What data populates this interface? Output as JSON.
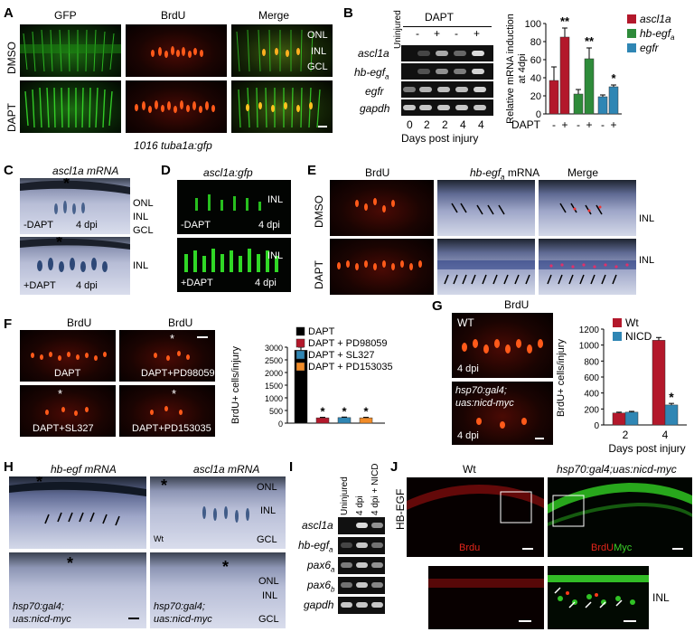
{
  "panels": {
    "A": {
      "label": "A",
      "columns": [
        "GFP",
        "BrdU",
        "Merge"
      ],
      "rows": [
        "DMSO",
        "DAPT"
      ],
      "layers": [
        "ONL",
        "INL",
        "GCL"
      ],
      "caption": "1016 tuba1a:gfp"
    },
    "B": {
      "label": "B",
      "uninjured": "Uninjured",
      "dapt": "DAPT",
      "signs": [
        "-",
        "+",
        "-",
        "+"
      ],
      "genes": [
        "ascl1a",
        "hb-egf",
        "egfr",
        "gapdh"
      ],
      "subscript_a": "a",
      "days": [
        "0",
        "2",
        "2",
        "4",
        "4"
      ],
      "xlabel": "Days post injury"
    },
    "C": {
      "label": "C",
      "title": "ascl1a mRNA",
      "layers": [
        "ONL",
        "INL",
        "GCL"
      ],
      "top": "-DAPT",
      "bottom": "+DAPT",
      "dpi": "4 dpi",
      "inl": "INL",
      "asterisk": "*"
    },
    "D": {
      "label": "D",
      "title": "ascl1a:gfp",
      "inl": "INL",
      "top": "-DAPT",
      "bottom": "+DAPT",
      "dpi": "4 dpi"
    },
    "E": {
      "label": "E",
      "columns": [
        "BrdU",
        "hb-egf",
        "mRNA",
        "Merge"
      ],
      "subscript_a": "a",
      "rows": [
        "DMSO",
        "DAPT"
      ],
      "inl": "INL"
    },
    "F": {
      "label": "F",
      "headers": [
        "BrdU",
        "BrdU"
      ],
      "captions": [
        "DAPT",
        "DAPT+PD98059",
        "DAPT+SL327",
        "DAPT+PD153035"
      ],
      "asterisk": "*"
    },
    "G": {
      "label": "G",
      "title": "BrdU",
      "wt": "WT",
      "dpi": "4 dpi",
      "line1": "hsp70:gal4;",
      "line2": "uas:nicd-myc"
    },
    "H": {
      "label": "H",
      "titles": [
        "hb-egf mRNA",
        "ascl1a mRNA"
      ],
      "layers": [
        "ONL",
        "INL",
        "GCL"
      ],
      "wt": "Wt",
      "line1": "hsp70:gal4;",
      "line2": "uas:nicd-myc",
      "asterisk": "*"
    },
    "I": {
      "label": "I",
      "lanes": [
        "Uninjured",
        "4 dpi",
        "4 dpi + NICD"
      ],
      "genes": [
        "ascl1a",
        "hb-egf",
        "pax6",
        "pax6",
        "gapdh"
      ],
      "subs": [
        "",
        "a",
        "a",
        "b",
        ""
      ]
    },
    "J": {
      "label": "J",
      "ylabel": "HB-EGF",
      "wt": "Wt",
      "transgenic": "hsp70:gal4;uas:nicd-myc",
      "brdu": "Brdu",
      "brdu2": "BrdU",
      "myc": "Myc",
      "inl": "INL"
    }
  },
  "colors": {
    "ascl1a": "#b3182b",
    "hb_egf": "#2e8b3a",
    "egfr": "#2f86b4",
    "wt": "#b3182b",
    "nicd": "#2f86b4",
    "dapt": "#000000",
    "pd98059": "#b3182b",
    "sl327": "#2f86b4",
    "pd153035": "#f28c28"
  },
  "chart_data": [
    {
      "id": "B-bar",
      "type": "bar",
      "ylabel": "Relative mRNA induction at 4dpi",
      "xlabel": "DAPT",
      "ylim": [
        0,
        100
      ],
      "yticks": [
        0,
        20,
        40,
        60,
        80,
        100
      ],
      "signs": [
        "-",
        "+"
      ],
      "legend": [
        "ascl1a",
        "hb-egf",
        "egfr"
      ],
      "legend_sub": "a",
      "groups": [
        {
          "name": "ascl1a",
          "values": [
            37,
            85
          ],
          "errors": [
            15,
            10
          ],
          "sig": "**"
        },
        {
          "name": "hb-egf",
          "values": [
            22,
            61
          ],
          "errors": [
            5,
            12
          ],
          "sig": "**"
        },
        {
          "name": "egfr",
          "values": [
            19,
            30
          ],
          "errors": [
            2,
            2
          ],
          "sig": "*"
        }
      ]
    },
    {
      "id": "F-bar",
      "type": "bar",
      "ylabel": "BrdU+ cells/injury",
      "ylim": [
        0,
        3000
      ],
      "yticks": [
        0,
        500,
        1000,
        1500,
        2000,
        2500,
        3000
      ],
      "legend": [
        "DAPT",
        "DAPT + PD98059",
        "DAPT + SL327",
        "DAPT + PD153035"
      ],
      "values": [
        2880,
        210,
        220,
        210
      ],
      "errors": [
        120,
        20,
        20,
        20
      ],
      "sig": [
        "",
        "*",
        "*",
        "*"
      ]
    },
    {
      "id": "G-bar",
      "type": "bar",
      "ylabel": "BrdU+ cells/injury",
      "xlabel": "Days post injury",
      "ylim": [
        0,
        1200
      ],
      "yticks": [
        0,
        200,
        400,
        600,
        800,
        1000,
        1200
      ],
      "categories": [
        "2",
        "4"
      ],
      "legend": [
        "Wt",
        "NICD"
      ],
      "series": [
        {
          "name": "Wt",
          "values": [
            150,
            1060
          ],
          "errors": [
            10,
            35
          ]
        },
        {
          "name": "NICD",
          "values": [
            160,
            250
          ],
          "errors": [
            10,
            20
          ]
        }
      ],
      "sig": [
        "",
        "*"
      ]
    }
  ]
}
